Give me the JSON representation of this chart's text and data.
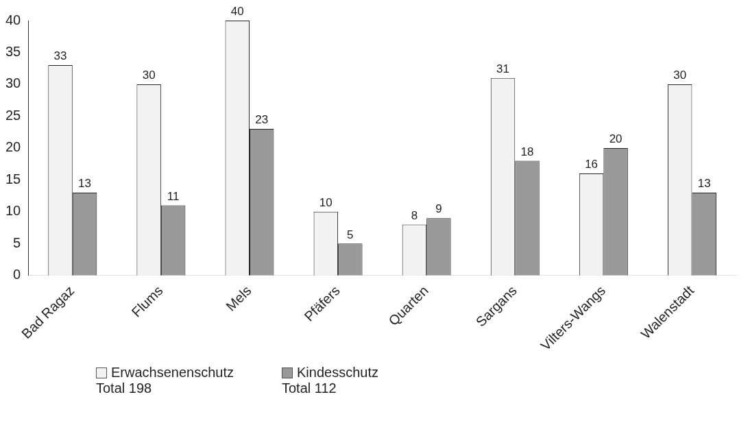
{
  "chart_data": {
    "type": "bar",
    "categories": [
      "Bad Ragaz",
      "Flums",
      "Mels",
      "Pfäfers",
      "Quarten",
      "Sargans",
      "Vilters-Wangs",
      "Walenstadt"
    ],
    "series": [
      {
        "name": "Erwachsenenschutz",
        "color": "#f2f2f2",
        "values": [
          33,
          30,
          40,
          10,
          8,
          31,
          16,
          30
        ]
      },
      {
        "name": "Kindesschutz",
        "color": "#999999",
        "values": [
          13,
          11,
          23,
          5,
          9,
          18,
          20,
          13
        ]
      }
    ],
    "ylim": [
      0,
      40
    ],
    "yticks": [
      0,
      5,
      10,
      15,
      20,
      25,
      30,
      35,
      40
    ],
    "grid": false,
    "data_labels": true,
    "legend": "bottom",
    "annotations": [
      "Total 198",
      "Total 112"
    ]
  }
}
